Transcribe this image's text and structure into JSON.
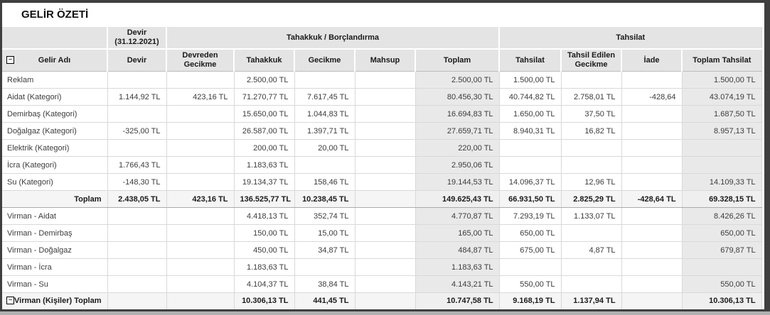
{
  "title": "GELİR ÖZETİ",
  "icons": {
    "collapse": "−"
  },
  "table": {
    "headers": {
      "devir_group": "Devir (31.12.2021)",
      "tahakkuk_group": "Tahakkuk / Borçlandırma",
      "tahsilat_group": "Tahsilat",
      "gelir_adi": "Gelir Adı",
      "devir": "Devir",
      "devreden_gecikme": "Devreden Gecikme",
      "tahakkuk": "Tahakkuk",
      "gecikme": "Gecikme",
      "mahsup": "Mahsup",
      "toplam": "Toplam",
      "tahsilat": "Tahsilat",
      "tahsil_edilen_gecikme": "Tahsil Edilen Gecikme",
      "iade": "İade",
      "toplam_tahsilat": "Toplam Tahsilat"
    },
    "rows": [
      {
        "label": "Reklam",
        "type": "data",
        "has_icon": false,
        "cells": {
          "devir": "",
          "devreden_gecikme": "",
          "tahakkuk": "2.500,00 TL",
          "gecikme": "",
          "mahsup": "",
          "toplam": "2.500,00 TL",
          "tahsilat": "1.500,00 TL",
          "tahsil_edilen_gecikme": "",
          "iade": "",
          "toplam_tahsilat": "1.500,00 TL"
        }
      },
      {
        "label": "Aidat (Kategori)",
        "type": "data",
        "has_icon": false,
        "cells": {
          "devir": "1.144,92 TL",
          "devreden_gecikme": "423,16 TL",
          "tahakkuk": "71.270,77 TL",
          "gecikme": "7.617,45 TL",
          "mahsup": "",
          "toplam": "80.456,30 TL",
          "tahsilat": "40.744,82 TL",
          "tahsil_edilen_gecikme": "2.758,01 TL",
          "iade": "-428,64",
          "toplam_tahsilat": "43.074,19 TL"
        }
      },
      {
        "label": "Demirbaş (Kategori)",
        "type": "data",
        "has_icon": false,
        "cells": {
          "devir": "",
          "devreden_gecikme": "",
          "tahakkuk": "15.650,00 TL",
          "gecikme": "1.044,83 TL",
          "mahsup": "",
          "toplam": "16.694,83 TL",
          "tahsilat": "1.650,00 TL",
          "tahsil_edilen_gecikme": "37,50 TL",
          "iade": "",
          "toplam_tahsilat": "1.687,50 TL"
        }
      },
      {
        "label": "Doğalgaz (Kategori)",
        "type": "data",
        "has_icon": false,
        "cells": {
          "devir": "-325,00 TL",
          "devreden_gecikme": "",
          "tahakkuk": "26.587,00 TL",
          "gecikme": "1.397,71 TL",
          "mahsup": "",
          "toplam": "27.659,71 TL",
          "tahsilat": "8.940,31 TL",
          "tahsil_edilen_gecikme": "16,82 TL",
          "iade": "",
          "toplam_tahsilat": "8.957,13 TL"
        }
      },
      {
        "label": "Elektrik (Kategori)",
        "type": "data",
        "has_icon": false,
        "cells": {
          "devir": "",
          "devreden_gecikme": "",
          "tahakkuk": "200,00 TL",
          "gecikme": "20,00 TL",
          "mahsup": "",
          "toplam": "220,00 TL",
          "tahsilat": "",
          "tahsil_edilen_gecikme": "",
          "iade": "",
          "toplam_tahsilat": ""
        }
      },
      {
        "label": "İcra (Kategori)",
        "type": "data",
        "has_icon": false,
        "cells": {
          "devir": "1.766,43 TL",
          "devreden_gecikme": "",
          "tahakkuk": "1.183,63 TL",
          "gecikme": "",
          "mahsup": "",
          "toplam": "2.950,06 TL",
          "tahsilat": "",
          "tahsil_edilen_gecikme": "",
          "iade": "",
          "toplam_tahsilat": ""
        }
      },
      {
        "label": "Su (Kategori)",
        "type": "data",
        "has_icon": false,
        "cells": {
          "devir": "-148,30 TL",
          "devreden_gecikme": "",
          "tahakkuk": "19.134,37 TL",
          "gecikme": "158,46 TL",
          "mahsup": "",
          "toplam": "19.144,53 TL",
          "tahsilat": "14.096,37 TL",
          "tahsil_edilen_gecikme": "12,96 TL",
          "iade": "",
          "toplam_tahsilat": "14.109,33 TL"
        }
      },
      {
        "label": "Toplam",
        "type": "summary",
        "has_icon": false,
        "cells": {
          "devir": "2.438,05 TL",
          "devreden_gecikme": "423,16 TL",
          "tahakkuk": "136.525,77 TL",
          "gecikme": "10.238,45 TL",
          "mahsup": "",
          "toplam": "149.625,43 TL",
          "tahsilat": "66.931,50 TL",
          "tahsil_edilen_gecikme": "2.825,29 TL",
          "iade": "-428,64 TL",
          "toplam_tahsilat": "69.328,15 TL"
        }
      },
      {
        "label": "Virman - Aidat",
        "type": "data",
        "has_icon": false,
        "cells": {
          "devir": "",
          "devreden_gecikme": "",
          "tahakkuk": "4.418,13 TL",
          "gecikme": "352,74 TL",
          "mahsup": "",
          "toplam": "4.770,87 TL",
          "tahsilat": "7.293,19 TL",
          "tahsil_edilen_gecikme": "1.133,07 TL",
          "iade": "",
          "toplam_tahsilat": "8.426,26 TL"
        }
      },
      {
        "label": "Virman - Demirbaş",
        "type": "data",
        "has_icon": false,
        "cells": {
          "devir": "",
          "devreden_gecikme": "",
          "tahakkuk": "150,00 TL",
          "gecikme": "15,00 TL",
          "mahsup": "",
          "toplam": "165,00 TL",
          "tahsilat": "650,00 TL",
          "tahsil_edilen_gecikme": "",
          "iade": "",
          "toplam_tahsilat": "650,00 TL"
        }
      },
      {
        "label": "Virman - Doğalgaz",
        "type": "data",
        "has_icon": false,
        "cells": {
          "devir": "",
          "devreden_gecikme": "",
          "tahakkuk": "450,00 TL",
          "gecikme": "34,87 TL",
          "mahsup": "",
          "toplam": "484,87 TL",
          "tahsilat": "675,00 TL",
          "tahsil_edilen_gecikme": "4,87 TL",
          "iade": "",
          "toplam_tahsilat": "679,87 TL"
        }
      },
      {
        "label": "Virman - İcra",
        "type": "data",
        "has_icon": false,
        "cells": {
          "devir": "",
          "devreden_gecikme": "",
          "tahakkuk": "1.183,63 TL",
          "gecikme": "",
          "mahsup": "",
          "toplam": "1.183,63 TL",
          "tahsilat": "",
          "tahsil_edilen_gecikme": "",
          "iade": "",
          "toplam_tahsilat": ""
        }
      },
      {
        "label": "Virman - Su",
        "type": "data",
        "has_icon": false,
        "cells": {
          "devir": "",
          "devreden_gecikme": "",
          "tahakkuk": "4.104,37 TL",
          "gecikme": "38,84 TL",
          "mahsup": "",
          "toplam": "4.143,21 TL",
          "tahsilat": "550,00 TL",
          "tahsil_edilen_gecikme": "",
          "iade": "",
          "toplam_tahsilat": "550,00 TL"
        }
      },
      {
        "label": "Virman (Kişiler) Toplam",
        "type": "summary",
        "has_icon": true,
        "cells": {
          "devir": "",
          "devreden_gecikme": "",
          "tahakkuk": "10.306,13 TL",
          "gecikme": "441,45 TL",
          "mahsup": "",
          "toplam": "10.747,58 TL",
          "tahsilat": "9.168,19 TL",
          "tahsil_edilen_gecikme": "1.137,94 TL",
          "iade": "",
          "toplam_tahsilat": "10.306,13 TL"
        }
      }
    ]
  }
}
